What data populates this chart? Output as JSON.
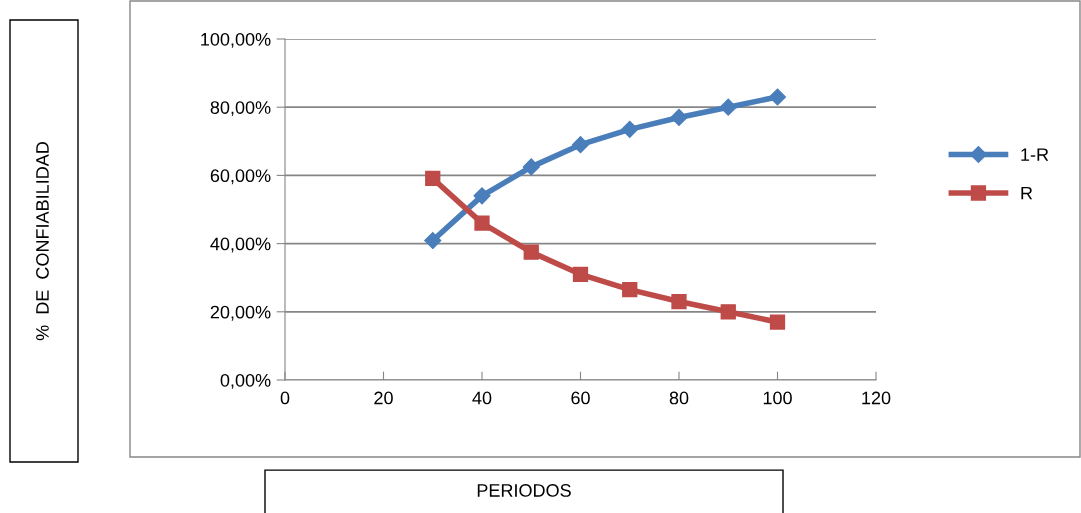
{
  "chart_data": {
    "type": "line",
    "xlabel": "PERIODOS",
    "annotations": [
      "%  DE  CONFIABILIDAD"
    ],
    "x": [
      30,
      40,
      50,
      60,
      70,
      80,
      90,
      100
    ],
    "series": [
      {
        "name": "1-R",
        "color": "#4a7ebb",
        "marker": "diamond",
        "values": [
          40.9,
          54,
          62.5,
          69,
          73.5,
          77,
          80,
          83
        ]
      },
      {
        "name": "R",
        "color": "#be4b48",
        "marker": "square",
        "values": [
          59.1,
          46,
          37.5,
          31,
          26.5,
          23,
          20,
          17
        ]
      }
    ],
    "xlim": [
      0,
      120
    ],
    "xticks": [
      0,
      20,
      40,
      60,
      80,
      100,
      120
    ],
    "ylim": [
      0,
      100
    ],
    "yticks": [
      {
        "value": 0,
        "label": "0,00%"
      },
      {
        "value": 20,
        "label": "20,00%"
      },
      {
        "value": 40,
        "label": "40,00%"
      },
      {
        "value": 60,
        "label": "60,00%"
      },
      {
        "value": 80,
        "label": "80,00%"
      },
      {
        "value": 100,
        "label": "100,00%"
      }
    ],
    "grid": "y",
    "legend": "right",
    "line_style": "solid"
  }
}
